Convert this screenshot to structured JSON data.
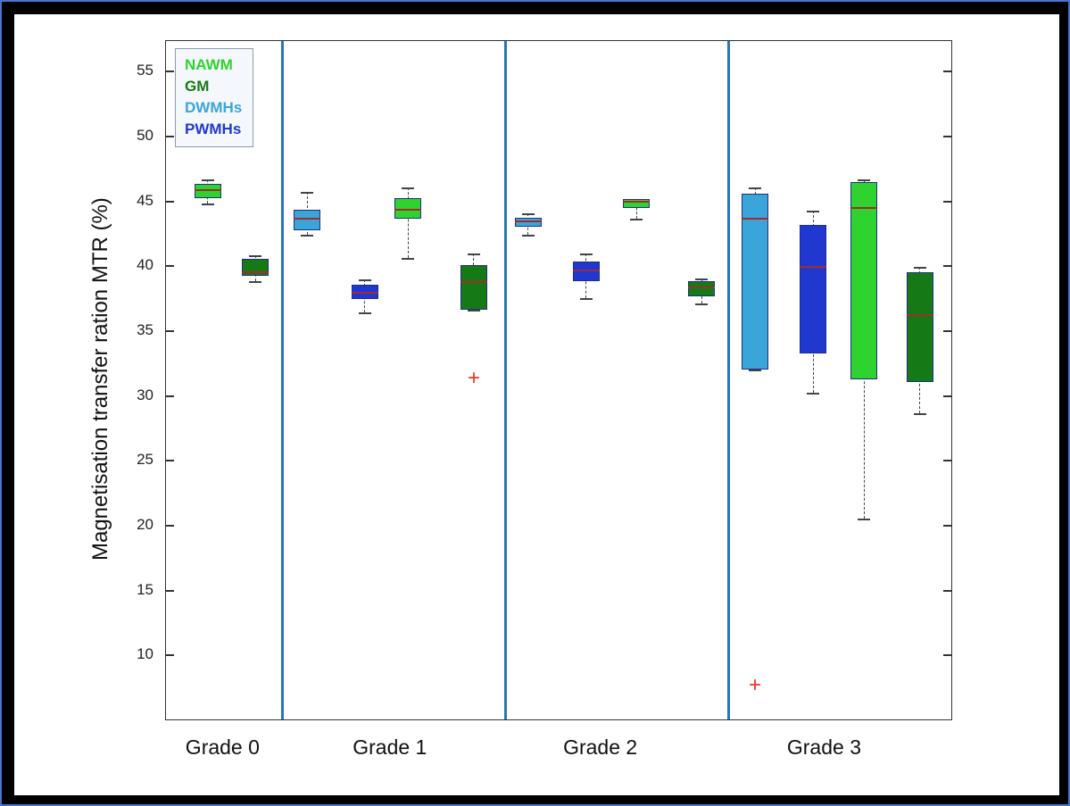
{
  "window": {
    "outer_border_color": "#4576cc",
    "frame_color": "#000000",
    "canvas_color": "#ffffff"
  },
  "chart_data": {
    "type": "boxplot",
    "title": "",
    "xlabel": "",
    "ylabel": "Magnetisation transfer ration MTR (%)",
    "ylim": [
      5.0,
      57.3
    ],
    "yticks": [
      10,
      15,
      20,
      25,
      30,
      35,
      40,
      45,
      50,
      55
    ],
    "grid": false,
    "legend_position": "top-left",
    "legend": [
      {
        "label": "NAWM",
        "color": "#2fd32f"
      },
      {
        "label": "GM",
        "color": "#157a15"
      },
      {
        "label": "DWMHs",
        "color": "#3aa5d9"
      },
      {
        "label": "PWMHs",
        "color": "#2038cf"
      }
    ],
    "separator_color": "#2e74b5",
    "separators_x": [
      0.148,
      0.432,
      0.716
    ],
    "median_color": "#a52a2a",
    "outlier_color": "#f03024",
    "outlier_marker": "+",
    "box_edge_color": "#1d2f86",
    "whisker_color": "#444444",
    "groups": [
      {
        "label": "Grade 0",
        "label_x": 0.072
      },
      {
        "label": "Grade 1",
        "label_x": 0.285
      },
      {
        "label": "Grade 2",
        "label_x": 0.553
      },
      {
        "label": "Grade 3",
        "label_x": 0.838
      }
    ],
    "boxes": [
      {
        "group": "Grade 0",
        "series": "NAWM",
        "x": 0.053,
        "q1": 45.2,
        "median": 45.8,
        "q3": 46.3,
        "whisker_low": 44.8,
        "whisker_high": 46.6,
        "outliers": []
      },
      {
        "group": "Grade 0",
        "series": "GM",
        "x": 0.114,
        "q1": 39.2,
        "median": 39.5,
        "q3": 40.5,
        "whisker_low": 38.8,
        "whisker_high": 40.8,
        "outliers": []
      },
      {
        "group": "Grade 1",
        "series": "DWMHs",
        "x": 0.18,
        "q1": 42.7,
        "median": 43.6,
        "q3": 44.3,
        "whisker_low": 42.4,
        "whisker_high": 45.7,
        "outliers": []
      },
      {
        "group": "Grade 1",
        "series": "PWMHs",
        "x": 0.253,
        "q1": 37.4,
        "median": 37.9,
        "q3": 38.5,
        "whisker_low": 36.4,
        "whisker_high": 38.9,
        "outliers": []
      },
      {
        "group": "Grade 1",
        "series": "NAWM",
        "x": 0.308,
        "q1": 43.6,
        "median": 44.3,
        "q3": 45.2,
        "whisker_low": 40.6,
        "whisker_high": 46.0,
        "outliers": []
      },
      {
        "group": "Grade 1",
        "series": "GM",
        "x": 0.392,
        "q1": 36.6,
        "median": 38.7,
        "q3": 40.0,
        "whisker_low": 36.6,
        "whisker_high": 40.9,
        "outliers": [
          31.3
        ]
      },
      {
        "group": "Grade 2",
        "series": "DWMHs",
        "x": 0.461,
        "q1": 43.0,
        "median": 43.4,
        "q3": 43.7,
        "whisker_low": 42.4,
        "whisker_high": 44.0,
        "outliers": []
      },
      {
        "group": "Grade 2",
        "series": "PWMHs",
        "x": 0.535,
        "q1": 38.8,
        "median": 39.6,
        "q3": 40.3,
        "whisker_low": 37.5,
        "whisker_high": 40.9,
        "outliers": []
      },
      {
        "group": "Grade 2",
        "series": "NAWM",
        "x": 0.599,
        "q1": 44.4,
        "median": 44.9,
        "q3": 45.1,
        "whisker_low": 43.6,
        "whisker_high": 45.1,
        "outliers": []
      },
      {
        "group": "Grade 2",
        "series": "GM",
        "x": 0.682,
        "q1": 37.6,
        "median": 38.3,
        "q3": 38.8,
        "whisker_low": 37.1,
        "whisker_high": 39.0,
        "outliers": []
      },
      {
        "group": "Grade 3",
        "series": "DWMHs",
        "x": 0.75,
        "q1": 32.0,
        "median": 43.6,
        "q3": 45.5,
        "whisker_low": 32.0,
        "whisker_high": 46.0,
        "outliers": [
          7.6
        ]
      },
      {
        "group": "Grade 3",
        "series": "PWMHs",
        "x": 0.824,
        "q1": 33.2,
        "median": 39.9,
        "q3": 43.1,
        "whisker_low": 30.2,
        "whisker_high": 44.2,
        "outliers": []
      },
      {
        "group": "Grade 3",
        "series": "NAWM",
        "x": 0.889,
        "q1": 31.2,
        "median": 44.4,
        "q3": 46.4,
        "whisker_low": 20.5,
        "whisker_high": 46.6,
        "outliers": []
      },
      {
        "group": "Grade 3",
        "series": "GM",
        "x": 0.96,
        "q1": 31.0,
        "median": 36.2,
        "q3": 39.5,
        "whisker_low": 28.6,
        "whisker_high": 39.9,
        "outliers": []
      }
    ]
  }
}
